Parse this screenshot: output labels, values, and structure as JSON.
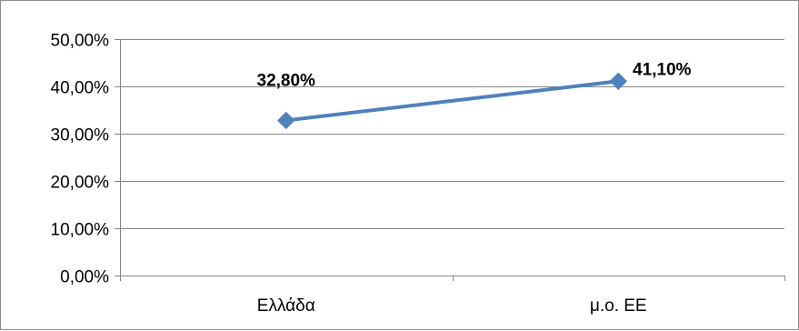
{
  "chart_data": {
    "type": "line",
    "title": "",
    "xlabel": "",
    "ylabel": "",
    "categories": [
      "Ελλάδα",
      "μ.ο. ΕΕ"
    ],
    "series": [
      {
        "values": [
          0.328,
          0.411
        ],
        "data_labels": [
          "32,80%",
          "41,10%"
        ],
        "color": "#4f81bd",
        "marker": "diamond"
      }
    ],
    "ylim": [
      0,
      0.5
    ],
    "yticks": [
      0,
      0.1,
      0.2,
      0.3,
      0.4,
      0.5
    ],
    "ytick_labels": [
      "0,00%",
      "10,00%",
      "20,00%",
      "30,00%",
      "40,00%",
      "50,00%"
    ],
    "grid": true,
    "legend": "none"
  }
}
